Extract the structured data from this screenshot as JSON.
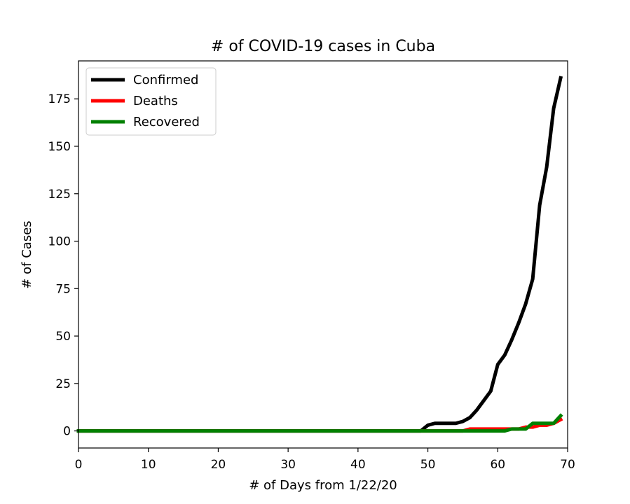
{
  "chart_data": {
    "type": "line",
    "title": "# of COVID-19 cases in Cuba",
    "xlabel": "# of Days from 1/22/20",
    "ylabel": "# of Cases",
    "xlim": [
      0,
      70
    ],
    "ylim": [
      -9,
      195
    ],
    "xticks": [
      0,
      10,
      20,
      30,
      40,
      50,
      60,
      70
    ],
    "yticks": [
      0,
      25,
      50,
      75,
      100,
      125,
      150,
      175
    ],
    "grid": false,
    "legend_position": "upper-left",
    "x": [
      0,
      1,
      2,
      3,
      4,
      5,
      6,
      7,
      8,
      9,
      10,
      11,
      12,
      13,
      14,
      15,
      16,
      17,
      18,
      19,
      20,
      21,
      22,
      23,
      24,
      25,
      26,
      27,
      28,
      29,
      30,
      31,
      32,
      33,
      34,
      35,
      36,
      37,
      38,
      39,
      40,
      41,
      42,
      43,
      44,
      45,
      46,
      47,
      48,
      49,
      50,
      51,
      52,
      53,
      54,
      55,
      56,
      57,
      58,
      59,
      60,
      61,
      62,
      63,
      64,
      65,
      66,
      67,
      68,
      69
    ],
    "series": [
      {
        "name": "Confirmed",
        "color": "#000000",
        "values": [
          0,
          0,
          0,
          0,
          0,
          0,
          0,
          0,
          0,
          0,
          0,
          0,
          0,
          0,
          0,
          0,
          0,
          0,
          0,
          0,
          0,
          0,
          0,
          0,
          0,
          0,
          0,
          0,
          0,
          0,
          0,
          0,
          0,
          0,
          0,
          0,
          0,
          0,
          0,
          0,
          0,
          0,
          0,
          0,
          0,
          0,
          0,
          0,
          0,
          0,
          3,
          4,
          4,
          4,
          4,
          5,
          7,
          11,
          16,
          21,
          35,
          40,
          48,
          57,
          67,
          80,
          119,
          139,
          170,
          186
        ]
      },
      {
        "name": "Deaths",
        "color": "#ff0000",
        "values": [
          0,
          0,
          0,
          0,
          0,
          0,
          0,
          0,
          0,
          0,
          0,
          0,
          0,
          0,
          0,
          0,
          0,
          0,
          0,
          0,
          0,
          0,
          0,
          0,
          0,
          0,
          0,
          0,
          0,
          0,
          0,
          0,
          0,
          0,
          0,
          0,
          0,
          0,
          0,
          0,
          0,
          0,
          0,
          0,
          0,
          0,
          0,
          0,
          0,
          0,
          0,
          0,
          0,
          0,
          0,
          0,
          1,
          1,
          1,
          1,
          1,
          1,
          1,
          1,
          2,
          2,
          3,
          3,
          4,
          6
        ]
      },
      {
        "name": "Recovered",
        "color": "#008000",
        "values": [
          0,
          0,
          0,
          0,
          0,
          0,
          0,
          0,
          0,
          0,
          0,
          0,
          0,
          0,
          0,
          0,
          0,
          0,
          0,
          0,
          0,
          0,
          0,
          0,
          0,
          0,
          0,
          0,
          0,
          0,
          0,
          0,
          0,
          0,
          0,
          0,
          0,
          0,
          0,
          0,
          0,
          0,
          0,
          0,
          0,
          0,
          0,
          0,
          0,
          0,
          0,
          0,
          0,
          0,
          0,
          0,
          0,
          0,
          0,
          0,
          0,
          0,
          1,
          1,
          1,
          4,
          4,
          4,
          4,
          8
        ]
      }
    ]
  }
}
